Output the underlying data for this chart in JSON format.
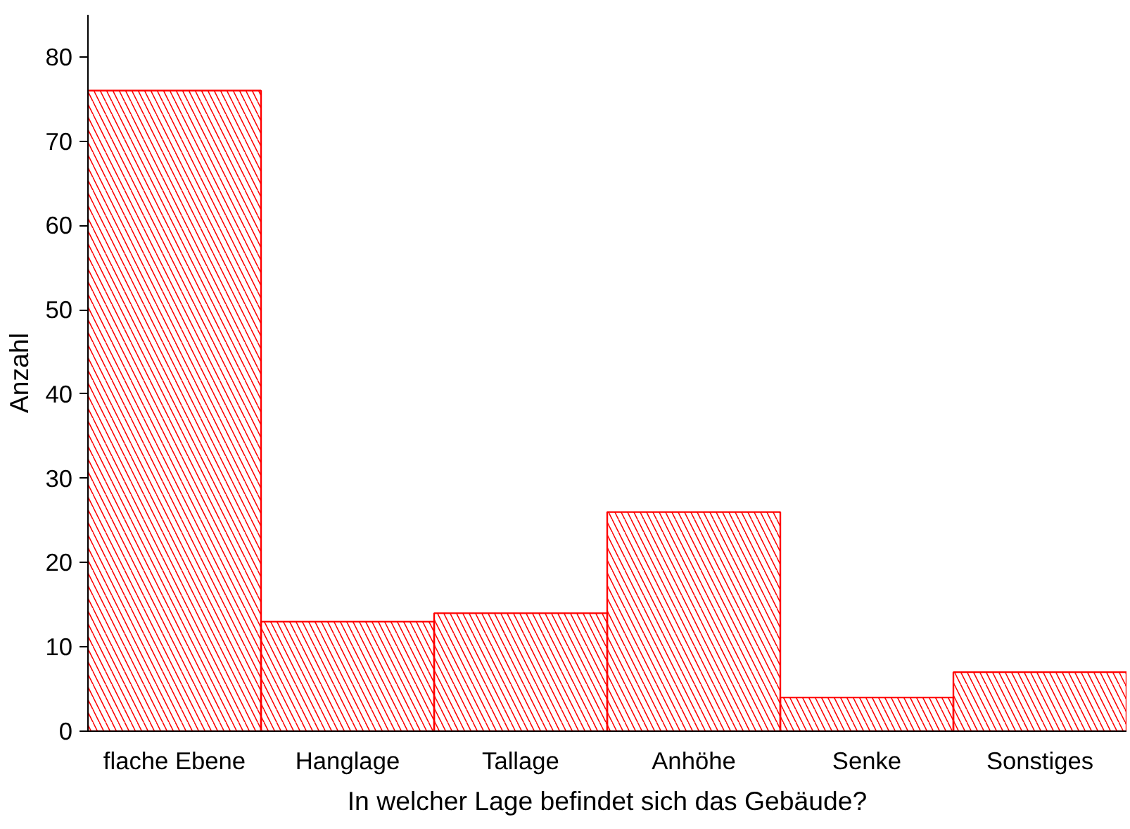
{
  "chart_data": {
    "type": "bar",
    "xlabel": "In welcher Lage befindet sich das Gebäude?",
    "ylabel": "Anzahl",
    "categories": [
      "flache Ebene",
      "Hanglage",
      "Tallage",
      "Anhöhe",
      "Senke",
      "Sonstiges"
    ],
    "values": [
      76,
      13,
      14,
      26,
      4,
      7
    ],
    "color": "#ff0000",
    "ylim": [
      0,
      85
    ],
    "yticks": [
      0,
      10,
      20,
      30,
      40,
      50,
      60,
      70,
      80
    ],
    "grid": false
  }
}
